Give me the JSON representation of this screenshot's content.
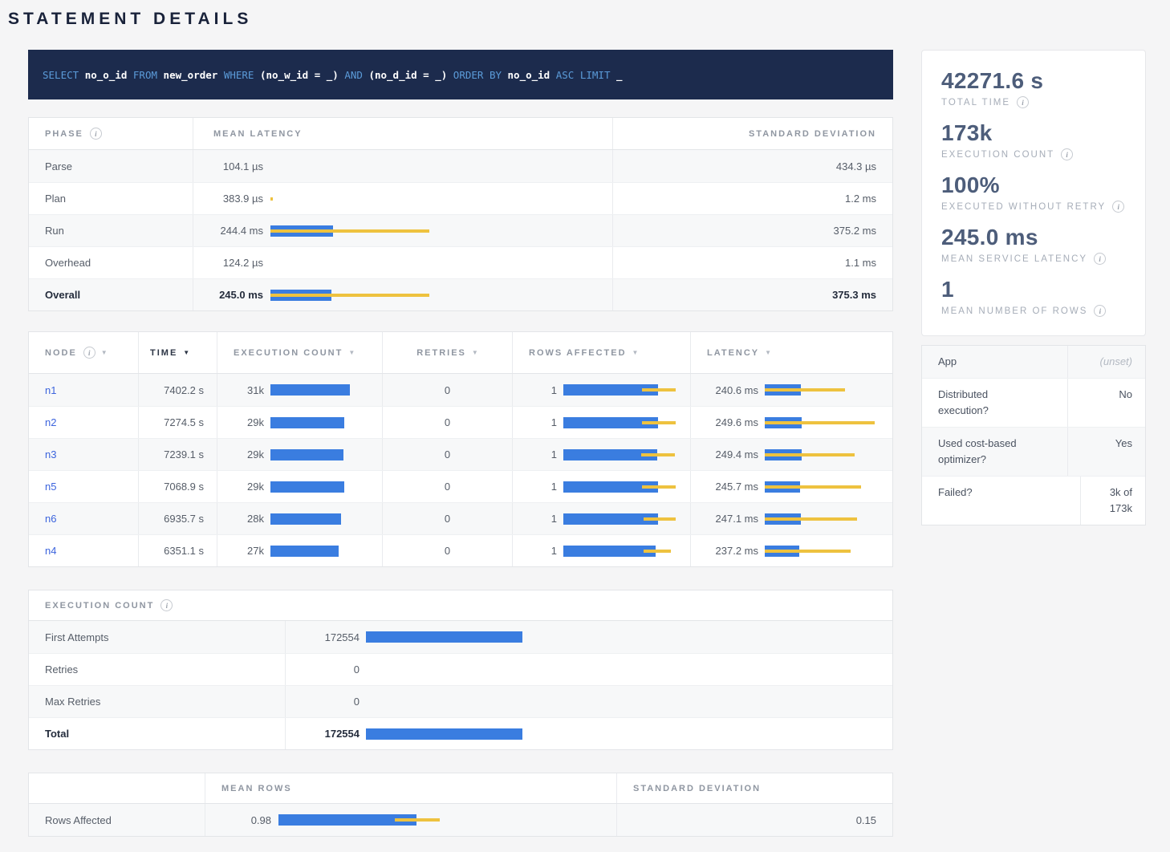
{
  "page": {
    "title": "STATEMENT DETAILS"
  },
  "colors": {
    "bar_blue": "#3a7de0",
    "bar_yellow": "#eec23f",
    "link_blue": "#3c64dd",
    "sql_background": "#1c2b4d",
    "sql_keyword": "#5b9bd9"
  },
  "sql": {
    "tokens": [
      {
        "type": "kw",
        "text": "SELECT "
      },
      {
        "type": "id",
        "text": "no_o_id "
      },
      {
        "type": "kw",
        "text": "FROM "
      },
      {
        "type": "id",
        "text": "new_order "
      },
      {
        "type": "kw",
        "text": "WHERE "
      },
      {
        "type": "id",
        "text": "(no_w_id = _) "
      },
      {
        "type": "kw",
        "text": "AND "
      },
      {
        "type": "id",
        "text": "(no_d_id = _) "
      },
      {
        "type": "kw",
        "text": "ORDER BY "
      },
      {
        "type": "id",
        "text": "no_o_id "
      },
      {
        "type": "kw",
        "text": "ASC "
      },
      {
        "type": "kw",
        "text": "LIMIT "
      },
      {
        "type": "id",
        "text": "_"
      }
    ]
  },
  "phase_table": {
    "headers": {
      "phase": "PHASE",
      "mean_latency": "MEAN LATENCY",
      "std_dev": "STANDARD DEVIATION"
    },
    "rows": [
      {
        "phase": "Parse",
        "mean": "104.1 µs",
        "sd": "434.3 µs",
        "bar": 0,
        "whisker": 0
      },
      {
        "phase": "Plan",
        "mean": "383.9 µs",
        "sd": "1.2 ms",
        "bar": 0,
        "whisker": 3
      },
      {
        "phase": "Run",
        "mean": "244.4 ms",
        "sd": "375.2 ms",
        "bar": 78,
        "whisker": 198
      },
      {
        "phase": "Overhead",
        "mean": "124.2 µs",
        "sd": "1.1 ms",
        "bar": 0,
        "whisker": 0
      },
      {
        "phase": "Overall",
        "mean": "245.0 ms",
        "sd": "375.3 ms",
        "bar": 76,
        "whisker": 198
      }
    ]
  },
  "nodes_table": {
    "headers": {
      "node": "NODE",
      "time": "TIME",
      "execution_count": "EXECUTION COUNT",
      "retries": "RETRIES",
      "rows_affected": "ROWS AFFECTED",
      "latency": "LATENCY"
    },
    "rows": [
      {
        "node": "n1",
        "time": "7402.2 s",
        "count": "31k",
        "count_bar": 99,
        "retries": "0",
        "rows": "1",
        "rows_bar": 118,
        "rows_wl": 98,
        "rows_ww": 42,
        "latency": "240.6 ms",
        "lat_bar": 45,
        "lat_whisker": 100
      },
      {
        "node": "n2",
        "time": "7274.5 s",
        "count": "29k",
        "count_bar": 92,
        "retries": "0",
        "rows": "1",
        "rows_bar": 118,
        "rows_wl": 98,
        "rows_ww": 42,
        "latency": "249.6 ms",
        "lat_bar": 46,
        "lat_whisker": 137
      },
      {
        "node": "n3",
        "time": "7239.1 s",
        "count": "29k",
        "count_bar": 91,
        "retries": "0",
        "rows": "1",
        "rows_bar": 117,
        "rows_wl": 97,
        "rows_ww": 42,
        "latency": "249.4 ms",
        "lat_bar": 46,
        "lat_whisker": 112
      },
      {
        "node": "n5",
        "time": "7068.9 s",
        "count": "29k",
        "count_bar": 92,
        "retries": "0",
        "rows": "1",
        "rows_bar": 118,
        "rows_wl": 98,
        "rows_ww": 42,
        "latency": "245.7 ms",
        "lat_bar": 44,
        "lat_whisker": 120
      },
      {
        "node": "n6",
        "time": "6935.7 s",
        "count": "28k",
        "count_bar": 88,
        "retries": "0",
        "rows": "1",
        "rows_bar": 118,
        "rows_wl": 100,
        "rows_ww": 40,
        "latency": "247.1 ms",
        "lat_bar": 45,
        "lat_whisker": 115
      },
      {
        "node": "n4",
        "time": "6351.1 s",
        "count": "27k",
        "count_bar": 85,
        "retries": "0",
        "rows": "1",
        "rows_bar": 115,
        "rows_wl": 100,
        "rows_ww": 34,
        "latency": "237.2 ms",
        "lat_bar": 43,
        "lat_whisker": 107
      }
    ]
  },
  "exec_table": {
    "title": "EXECUTION COUNT",
    "rows": [
      {
        "label": "First Attempts",
        "value": "172554",
        "bar": 195
      },
      {
        "label": "Retries",
        "value": "0",
        "bar": 0
      },
      {
        "label": "Max Retries",
        "value": "0",
        "bar": 0
      },
      {
        "label": "Total",
        "value": "172554",
        "bar": 195
      }
    ]
  },
  "rows_table": {
    "headers": {
      "blank": "",
      "mean_rows": "MEAN ROWS",
      "std_dev": "STANDARD DEVIATION"
    },
    "row": {
      "label": "Rows Affected",
      "mean": "0.98",
      "bar": 172,
      "wl": 145,
      "ww": 56,
      "sd": "0.15"
    }
  },
  "summary": {
    "stats": [
      {
        "value": "42271.6 s",
        "label": "TOTAL TIME"
      },
      {
        "value": "173k",
        "label": "EXECUTION COUNT"
      },
      {
        "value": "100%",
        "label": "EXECUTED WITHOUT RETRY"
      },
      {
        "value": "245.0 ms",
        "label": "MEAN SERVICE LATENCY"
      },
      {
        "value": "1",
        "label": "MEAN NUMBER OF ROWS"
      }
    ]
  },
  "details": {
    "rows": [
      {
        "label": "App",
        "value": "(unset)"
      },
      {
        "label": "Distributed execution?",
        "value": "No"
      },
      {
        "label": "Used cost-based optimizer?",
        "value": "Yes"
      },
      {
        "label": "Failed?",
        "value": "3k of 173k"
      }
    ]
  }
}
